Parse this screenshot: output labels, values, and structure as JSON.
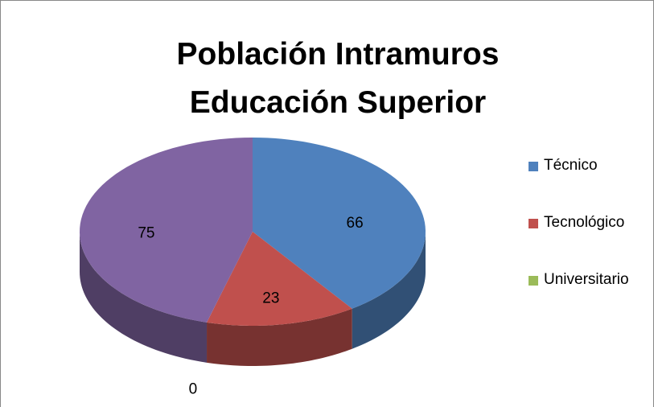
{
  "chart_data": {
    "type": "pie",
    "title": "Población Intramuros Educación Superior",
    "categories": [
      "Técnico",
      "Tecnológico",
      "Universitario",
      null
    ],
    "values": [
      66,
      23,
      0,
      75
    ],
    "colors": [
      "#4f81bd",
      "#c0504d",
      "#9bbb59",
      "#8064a2"
    ],
    "three_d": true,
    "legend": "right"
  }
}
